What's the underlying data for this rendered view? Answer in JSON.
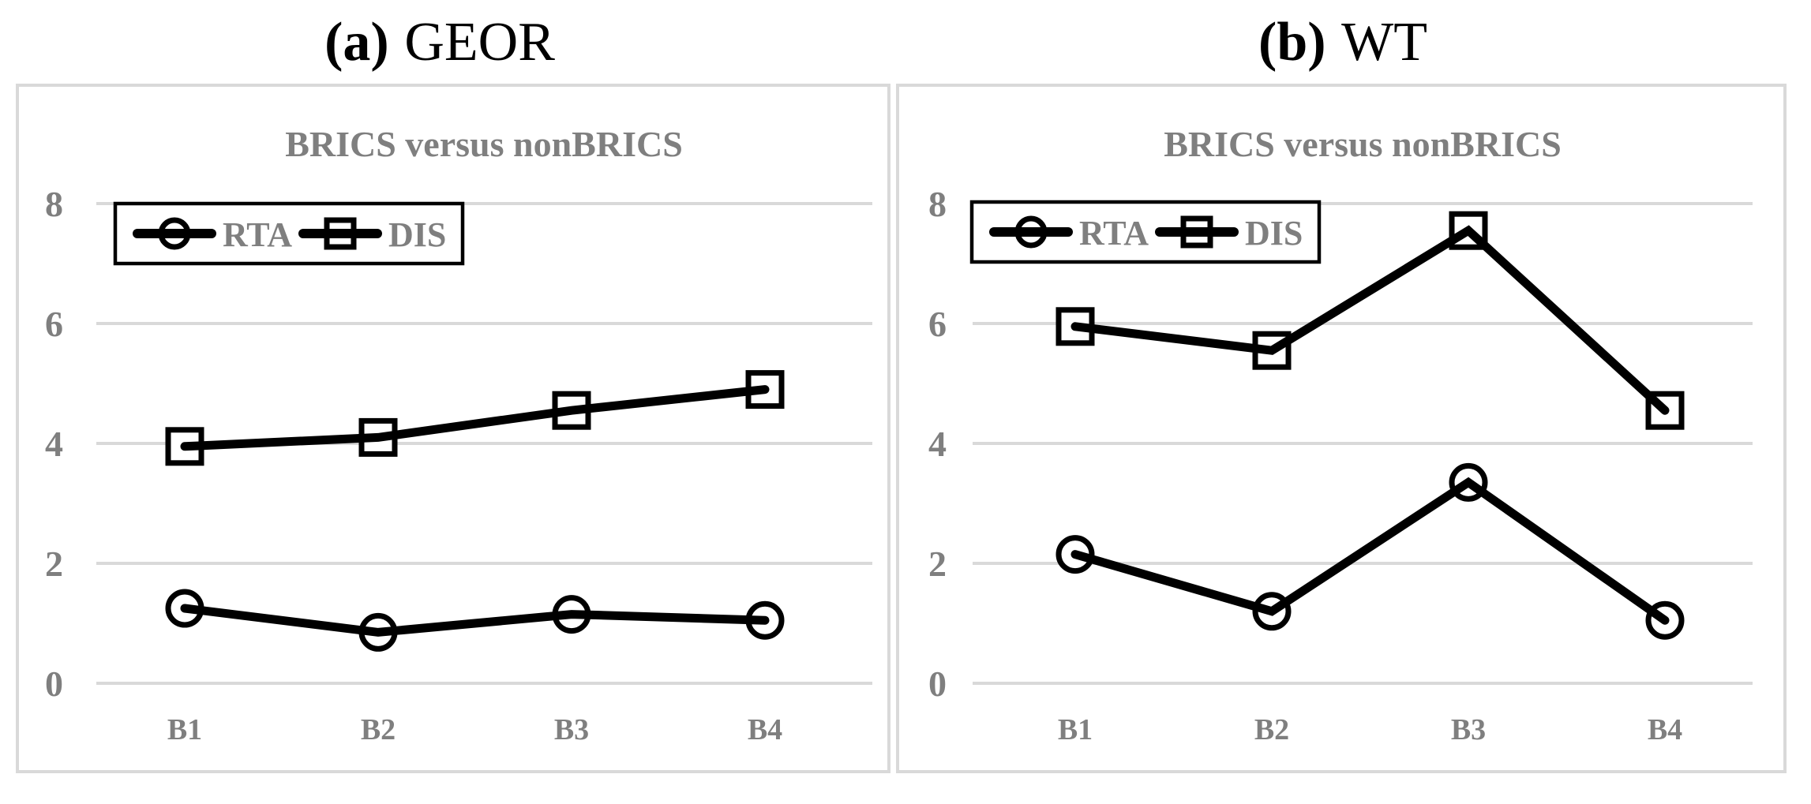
{
  "figure": {
    "panels": [
      {
        "panel_label": "(a)",
        "panel_name": "GEOR"
      },
      {
        "panel_label": "(b)",
        "panel_name": "WT"
      }
    ]
  },
  "chart_data": [
    {
      "type": "line",
      "panel": "(a) GEOR",
      "title": "BRICS versus nonBRICS",
      "categories": [
        "B1",
        "B2",
        "B3",
        "B4"
      ],
      "series": [
        {
          "name": "RTA",
          "marker": "circle",
          "color": "#000000",
          "values": [
            1.25,
            0.85,
            1.15,
            1.05
          ]
        },
        {
          "name": "DIS",
          "marker": "square",
          "color": "#000000",
          "values": [
            3.95,
            4.1,
            4.55,
            4.9
          ]
        }
      ],
      "ylim": [
        0,
        8
      ],
      "yticks": [
        8,
        6,
        4,
        2,
        0
      ],
      "grid": true,
      "legend_position": "top-left"
    },
    {
      "type": "line",
      "panel": "(b) WT",
      "title": "BRICS versus nonBRICS",
      "categories": [
        "B1",
        "B2",
        "B3",
        "B4"
      ],
      "series": [
        {
          "name": "RTA",
          "marker": "circle",
          "color": "#000000",
          "values": [
            2.15,
            1.2,
            3.35,
            1.05
          ]
        },
        {
          "name": "DIS",
          "marker": "square",
          "color": "#000000",
          "values": [
            5.95,
            5.55,
            7.55,
            4.55
          ]
        }
      ],
      "ylim": [
        0,
        8
      ],
      "yticks": [
        8,
        6,
        4,
        2,
        0
      ],
      "grid": true,
      "legend_position": "top-left"
    }
  ],
  "style": {
    "text_gray": "#7f7f7f",
    "gridline_color": "#d9d9d9",
    "panel_border_color": "#d9d9d9",
    "series_color": "#000000",
    "legend_border_color": "#000000",
    "background": "#ffffff"
  }
}
